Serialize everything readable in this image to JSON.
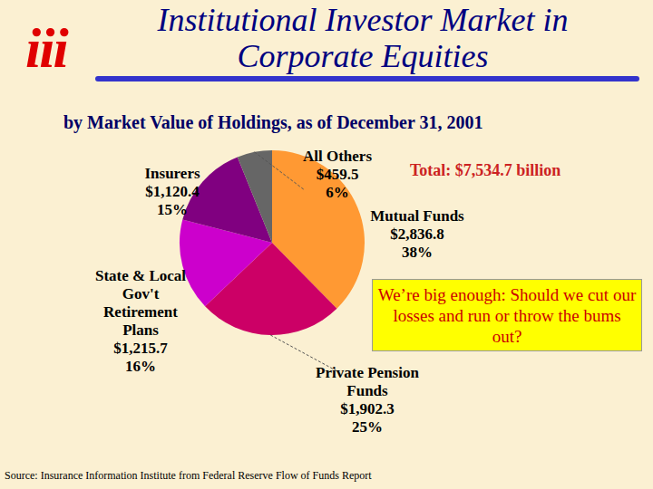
{
  "logo": "iii",
  "title": "Institutional Investor Market in Corporate Equities",
  "subtitle": "by Market Value of Holdings, as of December 31, 2001",
  "total": "Total: $7,534.7 billion",
  "annotation": "We’re big enough: Should we cut our losses and run or throw the bums out?",
  "source": "Source: Insurance Information Institute from Federal Reserve Flow of Funds Report",
  "chart_data": {
    "type": "pie",
    "categories": [
      "Mutual Funds",
      "Private Pension Funds",
      "State & Local Gov't Retirement Plans",
      "Insurers",
      "All Others"
    ],
    "values": [
      2836.8,
      1902.3,
      1215.7,
      1120.4,
      459.5
    ],
    "value_labels": [
      "$2,836.8",
      "$1,902.3",
      "$1,215.7",
      "$1,120.4",
      "$459.5"
    ],
    "shares": [
      38,
      25,
      16,
      15,
      6
    ],
    "share_labels": [
      "38%",
      "25%",
      "16%",
      "15%",
      "6%"
    ],
    "colors": [
      "#FF9933",
      "#CC0066",
      "#CC00CC",
      "#800080",
      "#666666"
    ],
    "data_labels": true
  }
}
